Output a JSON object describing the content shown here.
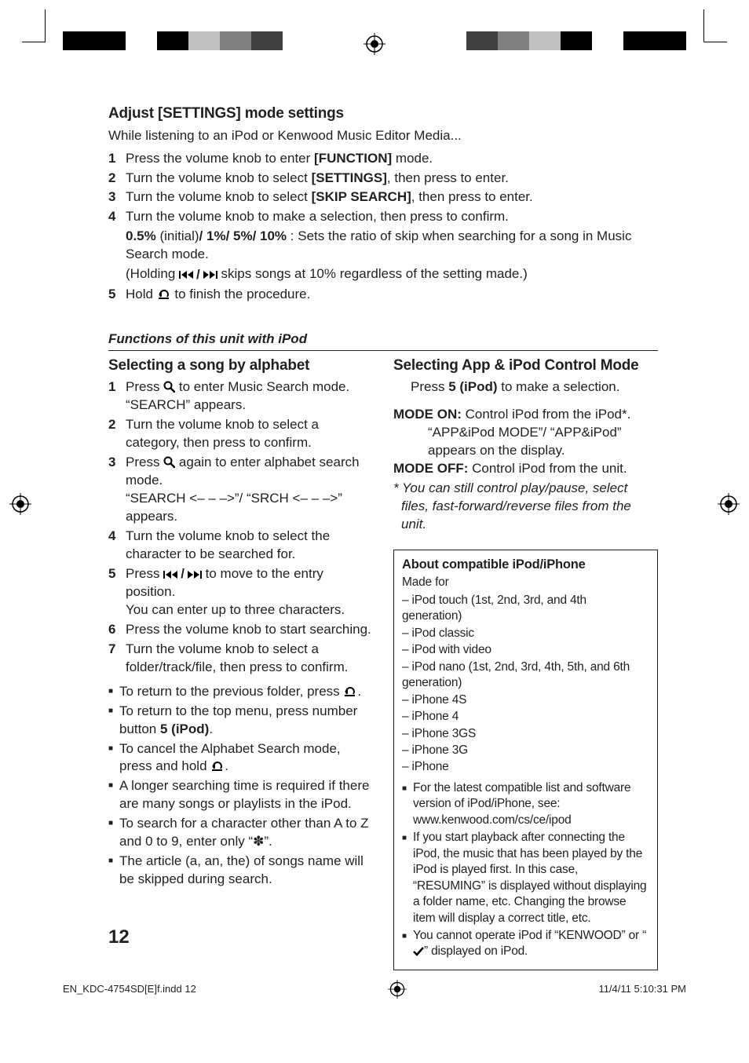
{
  "colorbar_left": [
    "#000000",
    "#000000",
    "#ffffff",
    "#000000",
    "#c0c0c0",
    "#808080",
    "#404040",
    "#ffffff"
  ],
  "colorbar_right": [
    "#000000",
    "#000000",
    "#ffffff",
    "#000000",
    "#c0c0c0",
    "#808080",
    "#404040",
    "#ffffff"
  ],
  "settings": {
    "heading": "Adjust [SETTINGS] mode settings",
    "intro": "While listening to an iPod or Kenwood Music Editor Media...",
    "steps": [
      {
        "n": "1",
        "main": [
          "Press the volume knob to enter ",
          {
            "b": "[FUNCTION]"
          },
          " mode."
        ]
      },
      {
        "n": "2",
        "main": [
          "Turn the volume knob to select ",
          {
            "b": "[SETTINGS]"
          },
          ", then press to enter."
        ]
      },
      {
        "n": "3",
        "main": [
          "Turn the volume knob to select ",
          {
            "b": "[SKIP SEARCH]"
          },
          ", then press to enter."
        ]
      },
      {
        "n": "4",
        "main": [
          "Turn the volume knob to make a selection, then press to confirm."
        ],
        "sub1": [
          {
            "b": "0.5%"
          },
          " (initial)",
          {
            "b": "/ 1%/ 5%/ 10%"
          },
          " : Sets the ratio of skip when searching for a song in Music Search mode."
        ],
        "sub2_pre": "(Holding ",
        "sub2_post": " skips songs at 10% regardless of the setting made.)"
      },
      {
        "n": "5",
        "main_pre": "Hold ",
        "main_post": " to finish the procedure.",
        "icon": "back"
      }
    ]
  },
  "functions_title": "Functions of this unit with iPod",
  "alphabet": {
    "heading": "Selecting a song by alphabet",
    "steps": [
      {
        "n": "1",
        "pre": "Press ",
        "icon": "search",
        "post": " to enter Music Search mode.",
        "sub": "“SEARCH” appears."
      },
      {
        "n": "2",
        "text": "Turn the volume knob to select a category, then press to confirm."
      },
      {
        "n": "3",
        "pre": "Press ",
        "icon": "search",
        "post": " again to enter alphabet search mode.",
        "sub": "“SEARCH <– – –>”/ “SRCH <– – –>” appears."
      },
      {
        "n": "4",
        "text": "Turn the volume knob to select the character to be searched for."
      },
      {
        "n": "5",
        "pre": "Press ",
        "icon": "skip",
        "post": " to move to the entry position.",
        "sub": "You can enter up to three characters."
      },
      {
        "n": "6",
        "text": "Press the volume knob to start searching."
      },
      {
        "n": "7",
        "text": "Turn the volume knob to select a folder/track/file, then press to confirm."
      }
    ],
    "bullets": [
      {
        "pre": "To return to the previous folder, press ",
        "icon": "back",
        "post": "."
      },
      {
        "text_pre": "To return to the top menu, press number button ",
        "bold": "5 (iPod)",
        "text_post": "."
      },
      {
        "pre": "To cancel the Alphabet Search mode, press and hold ",
        "icon": "back",
        "post": "."
      },
      {
        "text": "A longer searching time is required if there are many songs or playlists in the iPod."
      },
      {
        "text": "To search for a character other than A to Z and 0 to 9, enter only “✽”."
      },
      {
        "text": "The article (a, an, the) of songs name will be skipped during search."
      }
    ]
  },
  "appmode": {
    "heading": "Selecting App & iPod Control Mode",
    "intro_pre": "Press ",
    "intro_bold": "5 (iPod)",
    "intro_post": " to make a selection.",
    "on_label": "MODE ON:",
    "on_text": " Control iPod from the iPod*.",
    "on_sub": "“APP&iPod MODE”/ “APP&iPod” appears on the display.",
    "off_label": "MODE OFF:",
    "off_text": " Control iPod from the unit.",
    "note": "* You can still control play/pause, select files, fast-forward/reverse files from the unit."
  },
  "box": {
    "title": "About compatible iPod/iPhone",
    "made_for": "Made for",
    "list": [
      "iPod touch (1st, 2nd, 3rd, and 4th generation)",
      "iPod classic",
      "iPod with video",
      "iPod nano (1st, 2nd, 3rd, 4th, 5th, and 6th generation)",
      "iPhone 4S",
      "iPhone 4",
      "iPhone 3GS",
      "iPhone 3G",
      "iPhone"
    ],
    "bullets": [
      "For the latest compatible list and software version of iPod/iPhone, see: www.kenwood.com/cs/ce/ipod",
      "If you start playback after connecting the iPod, the music that has been played by the iPod is played first. In this case, “RESUMING” is displayed without displaying a folder name, etc. Changing the browse item will display a correct title, etc.",
      {
        "pre": "You cannot operate iPod if “KENWOOD” or “",
        "icon": "check",
        "post": "” displayed on iPod."
      }
    ]
  },
  "page_number": "12",
  "footer_left": "EN_KDC-4754SD[E]f.indd   12",
  "footer_right": "11/4/11   5:10:31 PM"
}
